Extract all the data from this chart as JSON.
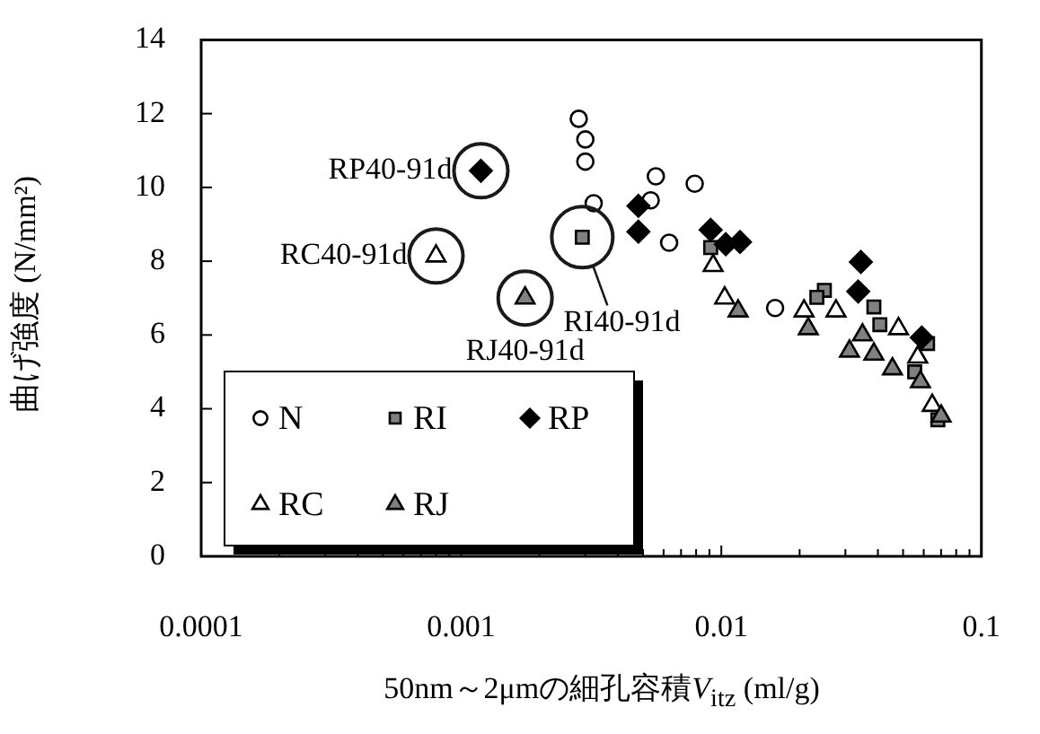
{
  "chart_data": {
    "type": "scatter",
    "xlabel": "50nm～2μmの細孔容積V$_{itz}$ (ml/g)",
    "ylabel": "曲げ強度 (N/mm²)",
    "log": "x",
    "grid": false,
    "legend": "bottom left",
    "xlim": [
      0.0001,
      0.1
    ],
    "ylim": [
      0,
      14
    ],
    "yticks": [
      0,
      2,
      4,
      6,
      8,
      10,
      12,
      14
    ],
    "xticks": [
      0.0001,
      {
        "value": 0.0002,
        "label": null
      },
      {
        "value": 0.0003,
        "label": null
      },
      {
        "value": 0.0004,
        "label": null
      },
      {
        "value": 0.0005,
        "label": null
      },
      {
        "value": 0.0006,
        "label": null
      },
      {
        "value": 0.0007,
        "label": null
      },
      {
        "value": 0.0008,
        "label": null
      },
      {
        "value": 0.0009,
        "label": null
      },
      0.001,
      {
        "value": 0.002,
        "label": null
      },
      {
        "value": 0.003,
        "label": null
      },
      {
        "value": 0.004,
        "label": null
      },
      {
        "value": 0.005,
        "label": null
      },
      {
        "value": 0.006,
        "label": null
      },
      {
        "value": 0.007,
        "label": null
      },
      {
        "value": 0.008,
        "label": null
      },
      {
        "value": 0.009,
        "label": null
      },
      0.01,
      {
        "value": 0.02,
        "label": null
      },
      {
        "value": 0.03,
        "label": null
      },
      {
        "value": 0.04,
        "label": null
      },
      {
        "value": 0.05,
        "label": null
      },
      {
        "value": 0.06,
        "label": null
      },
      {
        "value": 0.07,
        "label": null
      },
      {
        "value": 0.08,
        "label": null
      },
      {
        "value": 0.09,
        "label": null
      },
      0.1
    ],
    "series": [
      {
        "name": "N",
        "color": "#ffffff",
        "marker": "circle",
        "x": [
          0.00283,
          0.003,
          0.003,
          0.00323,
          0.0056,
          0.0079,
          0.00535,
          0.0063,
          0.0161
        ],
        "values": [
          11.86,
          11.3,
          10.7,
          9.57,
          10.3,
          10.1,
          9.65,
          8.5,
          6.73
        ]
      },
      {
        "name": "RI",
        "color": "#808080",
        "marker": "square",
        "x": [
          0.00292,
          0.0091,
          0.0249,
          0.0233,
          0.0386,
          0.0407,
          0.0621,
          0.0554,
          0.068
        ],
        "values": [
          8.65,
          8.37,
          7.21,
          7.02,
          6.76,
          6.28,
          5.77,
          5.0,
          3.7
        ]
      },
      {
        "name": "RP",
        "color": "#000000",
        "marker": "diamond",
        "x": [
          0.00119,
          0.0048,
          0.0048,
          0.0091,
          0.0104,
          0.0118,
          0.0344,
          0.0336,
          0.059
        ],
        "values": [
          10.45,
          9.5,
          8.8,
          8.85,
          8.46,
          8.52,
          7.98,
          7.18,
          5.93
        ]
      },
      {
        "name": "RC",
        "color": "#ffffff",
        "marker": "triangle",
        "x": [
          0.0008,
          0.0093,
          0.0103,
          0.0208,
          0.0276,
          0.048,
          0.0569,
          0.0647
        ],
        "values": [
          8.14,
          7.88,
          7.0,
          6.65,
          6.65,
          6.17,
          5.4,
          4.09
        ]
      },
      {
        "name": "RJ",
        "color": "#808080",
        "marker": "triangle",
        "x": [
          0.00176,
          0.0116,
          0.0216,
          0.0311,
          0.0349,
          0.0386,
          0.0455,
          0.0583,
          0.07
        ],
        "values": [
          7.0,
          6.65,
          6.17,
          5.56,
          6.0,
          5.48,
          5.08,
          4.73,
          3.8
        ]
      }
    ],
    "annotations": [
      {
        "text": "RP40-91d",
        "x": 0.00119,
        "y": 10.45
      },
      {
        "text": "RC40-91d",
        "x": 0.0008,
        "y": 8.14
      },
      {
        "text": "RJ40-91d",
        "x": 0.00176,
        "y": 7.0
      },
      {
        "text": "RI40-91d",
        "x": 0.00292,
        "y": 8.65
      }
    ]
  }
}
